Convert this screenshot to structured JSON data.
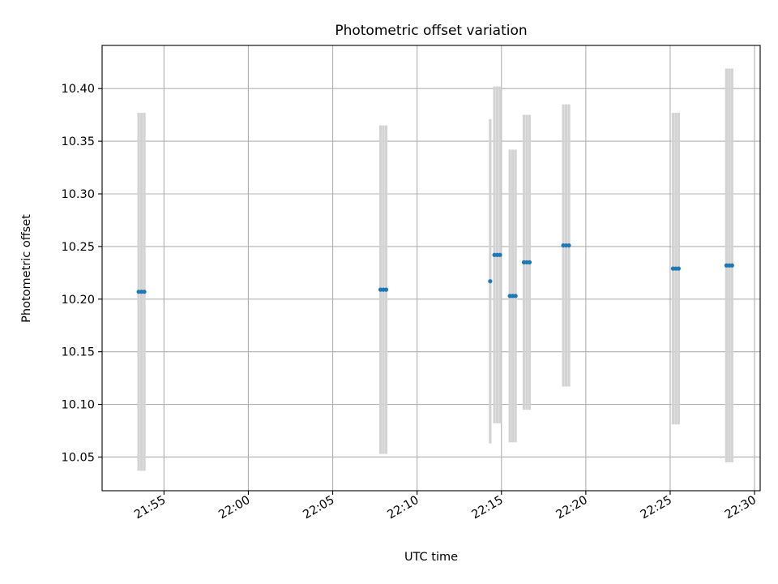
{
  "chart_data": {
    "type": "scatter",
    "title": "Photometric offset variation",
    "xlabel": "UTC time",
    "ylabel": "Photometric offset",
    "x_axis": "time",
    "xlim": [
      "21:51:20",
      "22:30:20"
    ],
    "ylim": [
      10.018,
      10.441
    ],
    "grid": true,
    "xticks": [
      "21:55",
      "22:00",
      "22:05",
      "22:10",
      "22:15",
      "22:20",
      "22:25",
      "22:30"
    ],
    "yticks": [
      "10.05",
      "10.10",
      "10.15",
      "10.20",
      "10.25",
      "10.30",
      "10.35",
      "10.40"
    ],
    "colors": {
      "points": "#1f77b4",
      "errorbars": "#d3d3d3",
      "grid": "#b0b0b0"
    },
    "series": [
      {
        "points": [
          {
            "x": "21:53:30",
            "y": 10.207,
            "yerr": 0.17
          },
          {
            "x": "21:53:40",
            "y": 10.207,
            "yerr": 0.17
          },
          {
            "x": "21:53:50",
            "y": 10.207,
            "yerr": 0.17
          },
          {
            "x": "22:07:50",
            "y": 10.209,
            "yerr": 0.156
          },
          {
            "x": "22:08:00",
            "y": 10.209,
            "yerr": 0.156
          },
          {
            "x": "22:08:10",
            "y": 10.209,
            "yerr": 0.156
          },
          {
            "x": "22:14:20",
            "y": 10.217,
            "yerr": 0.154
          },
          {
            "x": "22:14:35",
            "y": 10.242,
            "yerr": 0.16
          },
          {
            "x": "22:14:45",
            "y": 10.242,
            "yerr": 0.16
          },
          {
            "x": "22:14:55",
            "y": 10.242,
            "yerr": 0.16
          },
          {
            "x": "22:15:30",
            "y": 10.203,
            "yerr": 0.139
          },
          {
            "x": "22:15:40",
            "y": 10.203,
            "yerr": 0.139
          },
          {
            "x": "22:15:50",
            "y": 10.203,
            "yerr": 0.139
          },
          {
            "x": "22:16:20",
            "y": 10.235,
            "yerr": 0.14
          },
          {
            "x": "22:16:30",
            "y": 10.235,
            "yerr": 0.14
          },
          {
            "x": "22:16:40",
            "y": 10.235,
            "yerr": 0.14
          },
          {
            "x": "22:18:40",
            "y": 10.251,
            "yerr": 0.134
          },
          {
            "x": "22:18:50",
            "y": 10.251,
            "yerr": 0.134
          },
          {
            "x": "22:19:00",
            "y": 10.251,
            "yerr": 0.134
          },
          {
            "x": "22:25:10",
            "y": 10.229,
            "yerr": 0.148
          },
          {
            "x": "22:25:20",
            "y": 10.229,
            "yerr": 0.148
          },
          {
            "x": "22:25:30",
            "y": 10.229,
            "yerr": 0.148
          },
          {
            "x": "22:28:20",
            "y": 10.232,
            "yerr": 0.187
          },
          {
            "x": "22:28:30",
            "y": 10.232,
            "yerr": 0.187
          },
          {
            "x": "22:28:40",
            "y": 10.232,
            "yerr": 0.187
          }
        ]
      }
    ]
  }
}
